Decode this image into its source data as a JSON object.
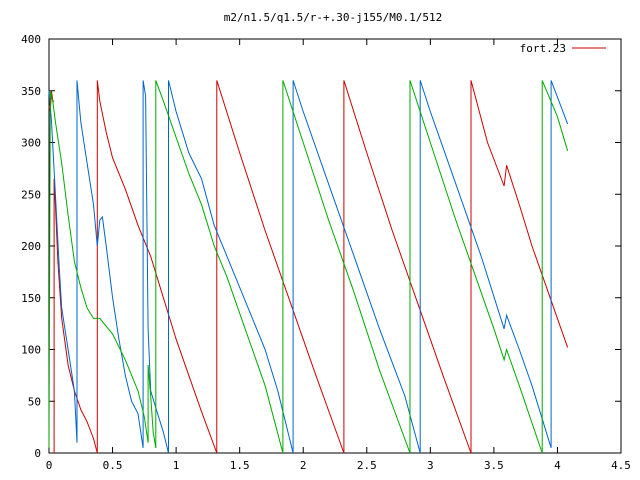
{
  "chart_data": {
    "type": "line",
    "title": "m2/n1.5/q1.5/r-+.30-j155/M0.1/512",
    "xlabel": "",
    "ylabel": "",
    "xlim": [
      0,
      4.5
    ],
    "ylim": [
      0,
      400
    ],
    "x_ticks": [
      0,
      0.5,
      1,
      1.5,
      2,
      2.5,
      3,
      3.5,
      4,
      4.5
    ],
    "x_tick_labels": [
      "0",
      "0.5",
      "1",
      "1.5",
      "2",
      "2.5",
      "3",
      "3.5",
      "4",
      "4.5"
    ],
    "y_ticks": [
      0,
      50,
      100,
      150,
      200,
      250,
      300,
      350,
      400
    ],
    "y_tick_labels": [
      "0",
      "50",
      "100",
      "150",
      "200",
      "250",
      "300",
      "350",
      "400"
    ],
    "grid": false,
    "legend_position": "top-right",
    "series": [
      {
        "name": "fort.23",
        "color": "#cc0000",
        "segments": [
          [
            [
              0.0,
              335
            ],
            [
              0.01,
              330
            ],
            [
              0.02,
              350
            ],
            [
              0.03,
              340
            ],
            [
              0.04,
              340
            ]
          ],
          [
            [
              0.04,
              0
            ],
            [
              0.04,
              265
            ],
            [
              0.05,
              240
            ],
            [
              0.07,
              185
            ],
            [
              0.1,
              130
            ],
            [
              0.15,
              85
            ],
            [
              0.2,
              60
            ],
            [
              0.25,
              42
            ],
            [
              0.3,
              30
            ],
            [
              0.35,
              14
            ],
            [
              0.38,
              0
            ]
          ],
          [
            [
              0.38,
              0
            ],
            [
              0.38,
              360
            ],
            [
              0.4,
              340
            ],
            [
              0.45,
              310
            ],
            [
              0.5,
              285
            ],
            [
              0.6,
              255
            ],
            [
              0.7,
              220
            ],
            [
              0.8,
              190
            ],
            [
              0.9,
              150
            ],
            [
              1.0,
              110
            ],
            [
              1.1,
              75
            ],
            [
              1.2,
              40
            ],
            [
              1.32,
              0
            ]
          ],
          [
            [
              1.32,
              0
            ],
            [
              1.32,
              360
            ],
            [
              1.5,
              290
            ],
            [
              1.7,
              215
            ],
            [
              1.9,
              145
            ],
            [
              2.1,
              75
            ],
            [
              2.32,
              0
            ]
          ],
          [
            [
              2.32,
              0
            ],
            [
              2.32,
              360
            ],
            [
              2.5,
              290
            ],
            [
              2.7,
              215
            ],
            [
              2.9,
              145
            ],
            [
              3.1,
              75
            ],
            [
              3.32,
              0
            ]
          ],
          [
            [
              3.32,
              0
            ],
            [
              3.32,
              360
            ],
            [
              3.45,
              300
            ],
            [
              3.58,
              258
            ],
            [
              3.6,
              278
            ],
            [
              3.7,
              240
            ],
            [
              3.8,
              200
            ],
            [
              3.9,
              165
            ],
            [
              4.0,
              130
            ],
            [
              4.08,
              102
            ]
          ]
        ]
      },
      {
        "name": "",
        "color": "#0066cc",
        "segments": [
          [
            [
              0.0,
              350
            ],
            [
              0.02,
              320
            ],
            [
              0.05,
              250
            ],
            [
              0.08,
              180
            ],
            [
              0.1,
              140
            ],
            [
              0.15,
              100
            ],
            [
              0.2,
              60
            ],
            [
              0.22,
              10
            ]
          ],
          [
            [
              0.22,
              10
            ],
            [
              0.22,
              360
            ],
            [
              0.25,
              320
            ],
            [
              0.3,
              280
            ],
            [
              0.35,
              240
            ],
            [
              0.38,
              200
            ],
            [
              0.4,
              225
            ],
            [
              0.42,
              228
            ],
            [
              0.45,
              200
            ],
            [
              0.5,
              150
            ],
            [
              0.55,
              110
            ],
            [
              0.6,
              75
            ],
            [
              0.65,
              50
            ],
            [
              0.7,
              38
            ],
            [
              0.74,
              5
            ]
          ],
          [
            [
              0.74,
              5
            ],
            [
              0.74,
              360
            ],
            [
              0.76,
              345
            ],
            [
              0.78,
              120
            ],
            [
              0.8,
              60
            ],
            [
              0.85,
              40
            ],
            [
              0.9,
              20
            ],
            [
              0.94,
              0
            ]
          ],
          [
            [
              0.94,
              0
            ],
            [
              0.94,
              360
            ],
            [
              1.0,
              330
            ],
            [
              1.1,
              290
            ],
            [
              1.2,
              265
            ],
            [
              1.3,
              220
            ],
            [
              1.4,
              190
            ],
            [
              1.5,
              160
            ],
            [
              1.6,
              130
            ],
            [
              1.7,
              100
            ],
            [
              1.8,
              60
            ],
            [
              1.92,
              0
            ]
          ],
          [
            [
              1.92,
              0
            ],
            [
              1.92,
              360
            ],
            [
              2.0,
              330
            ],
            [
              2.2,
              260
            ],
            [
              2.4,
              190
            ],
            [
              2.6,
              120
            ],
            [
              2.8,
              55
            ],
            [
              2.92,
              0
            ]
          ],
          [
            [
              2.92,
              0
            ],
            [
              2.92,
              360
            ],
            [
              3.0,
              330
            ],
            [
              3.2,
              260
            ],
            [
              3.4,
              190
            ],
            [
              3.58,
              120
            ],
            [
              3.6,
              133
            ],
            [
              3.7,
              100
            ],
            [
              3.8,
              65
            ],
            [
              3.95,
              5
            ]
          ],
          [
            [
              3.95,
              5
            ],
            [
              3.95,
              360
            ],
            [
              4.08,
              318
            ]
          ]
        ]
      },
      {
        "name": "",
        "color": "#00aa00",
        "segments": [
          [
            [
              0.0,
              5
            ],
            [
              0.01,
              350
            ],
            [
              0.03,
              340
            ],
            [
              0.05,
              320
            ],
            [
              0.1,
              280
            ],
            [
              0.15,
              230
            ],
            [
              0.2,
              185
            ],
            [
              0.25,
              160
            ],
            [
              0.3,
              140
            ],
            [
              0.35,
              130
            ],
            [
              0.4,
              130
            ],
            [
              0.5,
              115
            ],
            [
              0.6,
              90
            ],
            [
              0.7,
              60
            ],
            [
              0.75,
              35
            ],
            [
              0.78,
              10
            ]
          ],
          [
            [
              0.78,
              10
            ],
            [
              0.78,
              85
            ],
            [
              0.8,
              55
            ],
            [
              0.82,
              20
            ],
            [
              0.84,
              5
            ]
          ],
          [
            [
              0.84,
              5
            ],
            [
              0.84,
              360
            ],
            [
              0.9,
              340
            ],
            [
              1.0,
              305
            ],
            [
              1.1,
              270
            ],
            [
              1.2,
              240
            ],
            [
              1.25,
              220
            ],
            [
              1.3,
              200
            ],
            [
              1.4,
              170
            ],
            [
              1.5,
              135
            ],
            [
              1.6,
              100
            ],
            [
              1.7,
              65
            ],
            [
              1.84,
              0
            ]
          ],
          [
            [
              1.84,
              0
            ],
            [
              1.84,
              360
            ],
            [
              2.0,
              300
            ],
            [
              2.2,
              225
            ],
            [
              2.4,
              155
            ],
            [
              2.6,
              80
            ],
            [
              2.84,
              0
            ]
          ],
          [
            [
              2.84,
              0
            ],
            [
              2.84,
              360
            ],
            [
              3.0,
              300
            ],
            [
              3.2,
              225
            ],
            [
              3.4,
              155
            ],
            [
              3.5,
              120
            ],
            [
              3.58,
              90
            ],
            [
              3.6,
              100
            ],
            [
              3.7,
              65
            ],
            [
              3.88,
              0
            ]
          ],
          [
            [
              3.88,
              0
            ],
            [
              3.88,
              360
            ],
            [
              4.0,
              325
            ],
            [
              4.08,
              292
            ]
          ]
        ]
      }
    ]
  }
}
